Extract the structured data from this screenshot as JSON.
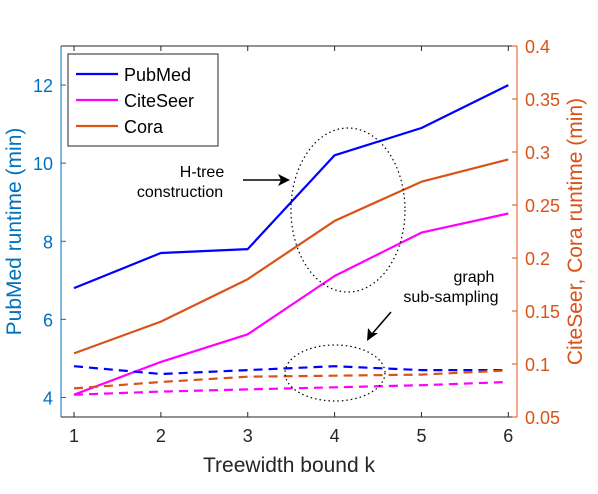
{
  "chart_data": {
    "type": "line",
    "x": [
      1,
      2,
      3,
      4,
      5,
      6
    ],
    "xlim": [
      0.85,
      6.1
    ],
    "xticks": [
      1,
      2,
      3,
      4,
      5,
      6
    ],
    "xlabel": "Treewidth bound k",
    "left_axis": {
      "label": "PubMed runtime (min)",
      "ylim": [
        3.5,
        13
      ],
      "ticks": [
        4,
        6,
        8,
        10,
        12
      ],
      "color": "#0072BD"
    },
    "right_axis": {
      "label": "CiteSeer, Cora runtime (min)",
      "ylim": [
        0.05,
        0.4
      ],
      "ticks": [
        0.05,
        0.1,
        0.15,
        0.2,
        0.25,
        0.3,
        0.35,
        0.4
      ],
      "color": "#D95319"
    },
    "series": [
      {
        "name": "PubMed",
        "axis": "left",
        "color": "#0000FF",
        "style": "solid",
        "values": [
          6.8,
          7.7,
          7.8,
          10.2,
          10.9,
          12.0
        ]
      },
      {
        "name": "CiteSeer",
        "axis": "right",
        "color": "#FF00FF",
        "style": "solid",
        "values": [
          0.071,
          0.102,
          0.128,
          0.183,
          0.224,
          0.242
        ]
      },
      {
        "name": "Cora",
        "axis": "right",
        "color": "#D95319",
        "style": "solid",
        "values": [
          0.11,
          0.14,
          0.18,
          0.235,
          0.272,
          0.293
        ]
      },
      {
        "axis": "left",
        "color": "#0000FF",
        "style": "dashed",
        "values": [
          4.8,
          4.6,
          4.7,
          4.8,
          4.7,
          4.7
        ]
      },
      {
        "axis": "right",
        "color": "#FF00FF",
        "style": "dashed",
        "values": [
          0.071,
          0.074,
          0.076,
          0.078,
          0.08,
          0.083
        ]
      },
      {
        "axis": "right",
        "color": "#D95319",
        "style": "dashed",
        "values": [
          0.077,
          0.083,
          0.088,
          0.089,
          0.09,
          0.094
        ]
      }
    ],
    "legend": {
      "placement": "top-left",
      "entries": [
        "PubMed",
        "CiteSeer",
        "Cora"
      ]
    },
    "annotations": [
      {
        "lines": [
          "H-tree",
          "construction"
        ]
      },
      {
        "lines": [
          "graph",
          "sub-sampling"
        ]
      }
    ],
    "grid": false
  }
}
